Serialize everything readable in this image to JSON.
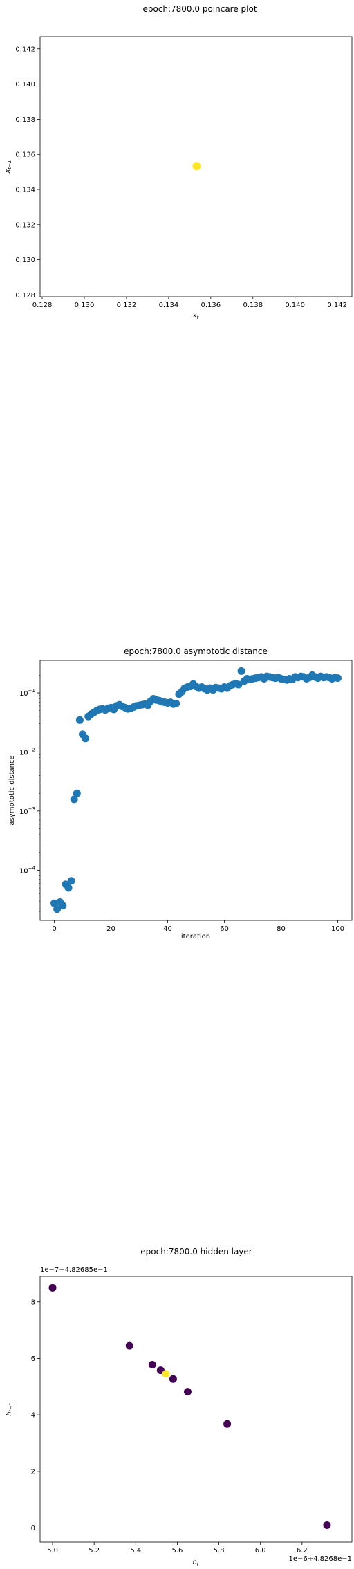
{
  "chart_data": [
    {
      "type": "scatter",
      "title": "epoch:7800.0 poincare plot",
      "xlabel": "x_t",
      "ylabel": "x_{t−1}",
      "xlim": [
        0.1279,
        0.1427
      ],
      "ylim": [
        0.1279,
        0.1427
      ],
      "xticks": [
        "0.128",
        "0.130",
        "0.132",
        "0.134",
        "0.136",
        "0.138",
        "0.140",
        "0.142"
      ],
      "yticks": [
        "0.128",
        "0.130",
        "0.132",
        "0.134",
        "0.136",
        "0.138",
        "0.140",
        "0.142"
      ],
      "points": [
        {
          "x": 0.13533,
          "y": 0.13533,
          "color": "#fde725"
        }
      ],
      "grid": false,
      "legend": "none"
    },
    {
      "type": "scatter",
      "title": "epoch:7800.0 asymptotic distance",
      "xlabel": "iteration",
      "ylabel": "asymptotic distance",
      "yscale": "log",
      "xlim": [
        -5,
        105
      ],
      "ylim_log10": [
        -4.85,
        -0.45
      ],
      "xticks": [
        "0",
        "20",
        "40",
        "60",
        "80",
        "100"
      ],
      "yticks": [
        {
          "base": "10",
          "exp": "−4",
          "log": -4
        },
        {
          "base": "10",
          "exp": "−3",
          "log": -3
        },
        {
          "base": "10",
          "exp": "−2",
          "log": -2
        },
        {
          "base": "10",
          "exp": "−1",
          "log": -1
        }
      ],
      "color": "#1f77b4",
      "y_log10": [
        -4.56,
        -4.66,
        -4.54,
        -4.6,
        -4.24,
        -4.3,
        -4.18,
        -2.8,
        -2.7,
        -1.46,
        -1.7,
        -1.77,
        -1.4,
        -1.36,
        -1.33,
        -1.3,
        -1.28,
        -1.27,
        -1.29,
        -1.26,
        -1.25,
        -1.28,
        -1.22,
        -1.2,
        -1.23,
        -1.25,
        -1.27,
        -1.26,
        -1.24,
        -1.22,
        -1.21,
        -1.2,
        -1.19,
        -1.21,
        -1.14,
        -1.1,
        -1.12,
        -1.13,
        -1.15,
        -1.16,
        -1.17,
        -1.16,
        -1.19,
        -1.18,
        -1.02,
        -0.98,
        -0.92,
        -0.9,
        -0.89,
        -0.85,
        -0.89,
        -0.92,
        -0.9,
        -0.93,
        -0.95,
        -0.92,
        -0.95,
        -0.91,
        -0.92,
        -0.93,
        -0.9,
        -0.92,
        -0.88,
        -0.86,
        -0.84,
        -0.86,
        -0.63,
        -0.8,
        -0.76,
        -0.77,
        -0.76,
        -0.75,
        -0.74,
        -0.73,
        -0.76,
        -0.72,
        -0.73,
        -0.74,
        -0.75,
        -0.74,
        -0.76,
        -0.77,
        -0.78,
        -0.76,
        -0.77,
        -0.73,
        -0.74,
        -0.72,
        -0.73,
        -0.76,
        -0.74,
        -0.7,
        -0.73,
        -0.75,
        -0.72,
        -0.74,
        -0.73,
        -0.74,
        -0.76,
        -0.74,
        -0.75
      ],
      "grid": false,
      "legend": "none"
    },
    {
      "type": "scatter",
      "title": "epoch:7800.0 hidden layer",
      "xlabel": "h_t",
      "ylabel": "h_{t−1}",
      "x_offset_label": "1e−6+4.8268e−1",
      "y_offset_label": "1e−7+4.82685e−1",
      "xlim": [
        4.94,
        6.44
      ],
      "ylim": [
        -0.5,
        8.9
      ],
      "xticks": [
        "5.0",
        "5.2",
        "5.4",
        "5.6",
        "5.8",
        "6.0",
        "6.2"
      ],
      "yticks": [
        "0",
        "2",
        "4",
        "6",
        "8"
      ],
      "points": [
        {
          "x": 5.0,
          "y": 8.5,
          "color": "#440154"
        },
        {
          "x": 5.37,
          "y": 6.45,
          "color": "#440154"
        },
        {
          "x": 5.48,
          "y": 5.78,
          "color": "#440154"
        },
        {
          "x": 5.52,
          "y": 5.58,
          "color": "#440154"
        },
        {
          "x": 5.58,
          "y": 5.27,
          "color": "#440154"
        },
        {
          "x": 5.65,
          "y": 4.82,
          "color": "#440154"
        },
        {
          "x": 5.84,
          "y": 3.68,
          "color": "#440154"
        },
        {
          "x": 6.32,
          "y": 0.1,
          "color": "#440154"
        },
        {
          "x": 5.545,
          "y": 5.45,
          "color": "#fde725"
        }
      ],
      "grid": false,
      "legend": "none"
    }
  ]
}
